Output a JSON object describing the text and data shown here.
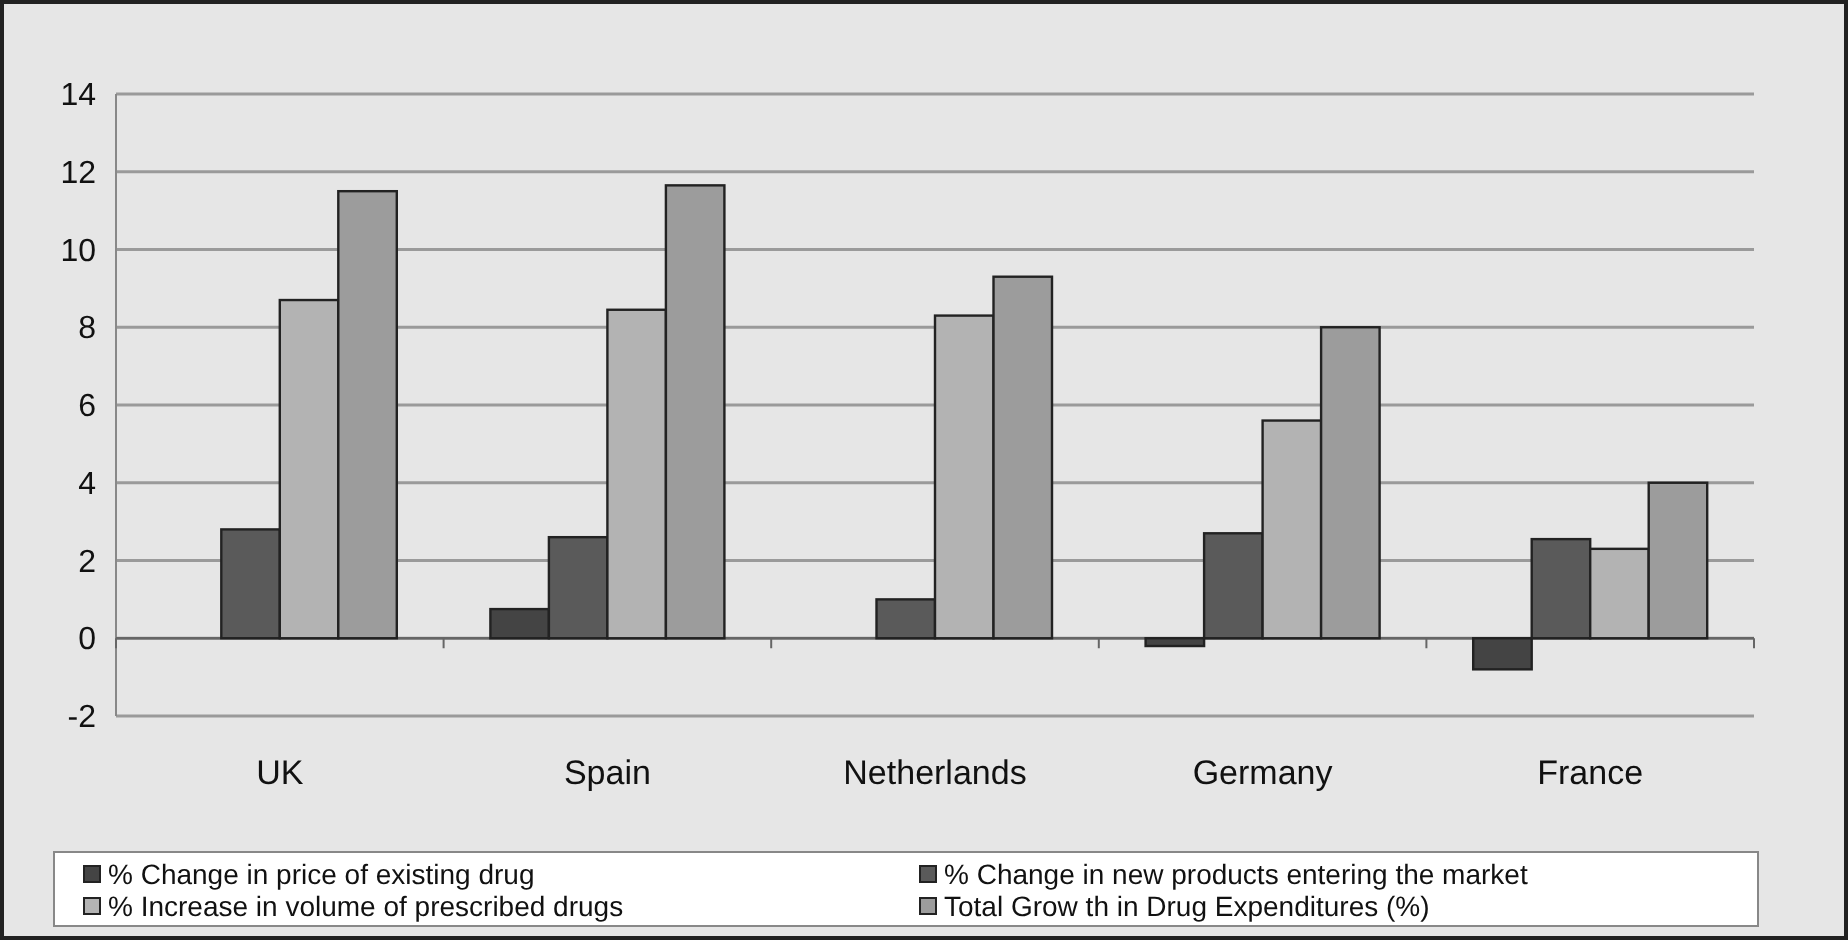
{
  "chart_data": {
    "type": "bar",
    "categories": [
      "UK",
      "Spain",
      "Netherlands",
      "Germany",
      "France"
    ],
    "series": [
      {
        "name": "% Change in price of existing drug",
        "color": "#444444",
        "values": [
          null,
          0.75,
          null,
          -0.2,
          -0.8
        ]
      },
      {
        "name": "% Change in new  products entering the market",
        "color": "#5a5a5a",
        "values": [
          2.8,
          2.6,
          1.0,
          2.7,
          2.55
        ]
      },
      {
        "name": "% Increase in volume of prescribed drugs",
        "color": "#b3b3b3",
        "values": [
          8.7,
          8.45,
          8.3,
          5.6,
          2.3
        ]
      },
      {
        "name": "Total Grow th in Drug Expenditures (%)",
        "color": "#9c9c9c",
        "values": [
          11.5,
          11.65,
          9.3,
          8.0,
          4.0
        ]
      }
    ],
    "ylim": [
      -2,
      14
    ],
    "yticks": [
      -2,
      0,
      2,
      4,
      6,
      8,
      10,
      12,
      14
    ],
    "grid": "y",
    "legend": "bottom"
  }
}
